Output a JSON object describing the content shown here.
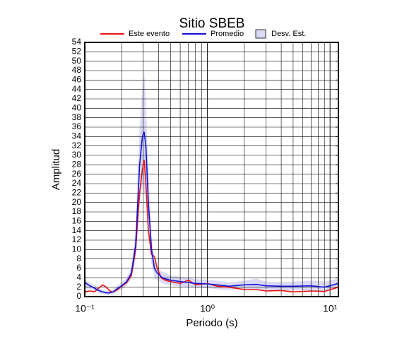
{
  "chart_data": {
    "type": "line",
    "title": "Sitio SBEB",
    "xlabel": "Periodo (s)",
    "ylabel": "Amplitud",
    "xscale": "log",
    "xlim": [
      0.1,
      11.7
    ],
    "ylim": [
      0,
      54
    ],
    "xticks": [
      {
        "value": 0.1,
        "label": "10⁻¹"
      },
      {
        "value": 1,
        "label": "10⁰"
      },
      {
        "value": 10,
        "label": "10¹"
      }
    ],
    "xminorticks": [
      0.2,
      0.3,
      0.4,
      0.5,
      0.6,
      0.7,
      0.8,
      0.9,
      2,
      3,
      4,
      5,
      6,
      7,
      8,
      9
    ],
    "yticks": [
      0,
      2,
      4,
      6,
      8,
      10,
      12,
      14,
      16,
      18,
      20,
      22,
      24,
      26,
      28,
      30,
      32,
      34,
      36,
      38,
      40,
      42,
      44,
      46,
      48,
      50,
      52,
      54
    ],
    "grid": true,
    "legend": "top",
    "x": [
      0.1,
      0.11,
      0.12,
      0.13,
      0.14,
      0.15,
      0.16,
      0.17,
      0.18,
      0.2,
      0.22,
      0.24,
      0.26,
      0.28,
      0.295,
      0.305,
      0.315,
      0.33,
      0.35,
      0.37,
      0.39,
      0.42,
      0.45,
      0.5,
      0.6,
      0.7,
      0.8,
      1.0,
      1.2,
      1.5,
      2.0,
      2.5,
      3.0,
      4.0,
      5.0,
      7.0,
      9.0,
      11.7
    ],
    "series": [
      {
        "name": "Este evento",
        "color": "#ee1111",
        "values": [
          1,
          1.2,
          1.0,
          1.8,
          2.5,
          2.0,
          1.2,
          1.0,
          1.3,
          2.2,
          3.0,
          4.5,
          10,
          22,
          27,
          29,
          24,
          14,
          9,
          8.5,
          6,
          4,
          3.5,
          3.2,
          2.8,
          3.5,
          2.5,
          2.8,
          2.2,
          2.0,
          1.5,
          1.5,
          1.2,
          1.3,
          1.0,
          1.2,
          1.1,
          2.0
        ]
      },
      {
        "name": "Promedio",
        "color": "#1111dd",
        "values": [
          3,
          2.3,
          1.8,
          1.3,
          1.0,
          0.8,
          0.8,
          1.0,
          1.5,
          2.3,
          3.2,
          5.0,
          11,
          28,
          34,
          35,
          32,
          20,
          10,
          6,
          5,
          4.2,
          3.8,
          3.5,
          3.2,
          3.0,
          2.8,
          2.7,
          2.5,
          2.2,
          2.5,
          2.6,
          2.3,
          2.2,
          2.2,
          2.3,
          2.0,
          2.8
        ]
      },
      {
        "name": "Desv. Est.",
        "color": "#dadaf6",
        "band": true,
        "lower": [
          2,
          1.6,
          1.2,
          0.8,
          0.5,
          0.4,
          0.4,
          0.5,
          0.9,
          1.6,
          2.4,
          3.8,
          8,
          20,
          24,
          22,
          22,
          14,
          7,
          4.2,
          3.5,
          3.0,
          2.6,
          2.4,
          2.2,
          2.0,
          1.9,
          1.8,
          1.6,
          1.4,
          1.6,
          1.5,
          1.4,
          1.3,
          1.3,
          1.3,
          1.1,
          1.8
        ],
        "upper": [
          3.6,
          3.0,
          2.4,
          1.8,
          1.5,
          1.2,
          1.2,
          1.5,
          2.1,
          3.0,
          4.0,
          6.2,
          14,
          36,
          44,
          48,
          42,
          26,
          13,
          7.8,
          6.5,
          5.4,
          5.0,
          4.6,
          4.2,
          4.0,
          3.7,
          3.6,
          3.4,
          3.0,
          3.4,
          3.8,
          3.2,
          3.1,
          3.2,
          3.4,
          3.2,
          3.8
        ]
      }
    ]
  }
}
